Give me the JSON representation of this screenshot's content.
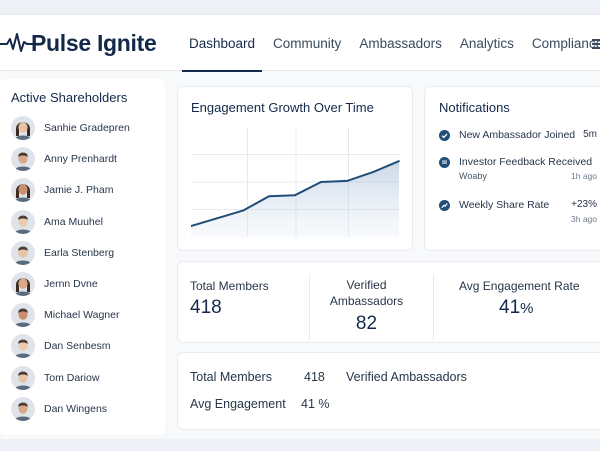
{
  "brand": {
    "name": "Pulse Ignite",
    "accent": "#14294a"
  },
  "nav": {
    "items": [
      {
        "label": "Dashboard",
        "active": true
      },
      {
        "label": "Community",
        "active": false
      },
      {
        "label": "Ambassadors",
        "active": false
      },
      {
        "label": "Analytics",
        "active": false
      },
      {
        "label": "Compliance",
        "active": false
      }
    ],
    "menu_icon": "hamburger-menu-icon"
  },
  "sidebar": {
    "title": "Active Shareholders",
    "shareholders": [
      {
        "name": "Sanhie Gradepren",
        "avatar": "female"
      },
      {
        "name": "Anny Prenhardt",
        "avatar": "male"
      },
      {
        "name": "Jamie J. Pham",
        "avatar": "female"
      },
      {
        "name": "Ama Muuhel",
        "avatar": "male"
      },
      {
        "name": "Earla Stenberg",
        "avatar": "male"
      },
      {
        "name": "Jernn Dvne",
        "avatar": "female"
      },
      {
        "name": "Michael Wagner",
        "avatar": "male"
      },
      {
        "name": "Dan Senbesm",
        "avatar": "male"
      },
      {
        "name": "Tom Dariow",
        "avatar": "male"
      },
      {
        "name": "Dan Wingens",
        "avatar": "male"
      }
    ]
  },
  "chart_data": {
    "type": "area",
    "title": "Engagement Growth Over Time",
    "x": [
      0,
      1,
      2,
      3,
      4,
      5,
      6,
      7,
      8
    ],
    "y": [
      10,
      17,
      24,
      37,
      38,
      50,
      51,
      59,
      69
    ],
    "ylim": [
      0,
      100
    ],
    "xlabel": "",
    "ylabel": "",
    "grid": true,
    "color": "#1f4e79"
  },
  "notifications": {
    "title": "Notifications",
    "items": [
      {
        "icon": "check-circle-icon",
        "text": "New Ambassador Joined",
        "value": "5m",
        "sub": "",
        "time": ""
      },
      {
        "icon": "message-icon",
        "text": "Investor Feedback Received",
        "value": "",
        "sub": "Woaby",
        "time": "1h ago"
      },
      {
        "icon": "trend-up-icon",
        "text": "Weekly Share Rate",
        "value": "+23%",
        "sub": "",
        "time": "3h ago"
      }
    ]
  },
  "stats": {
    "total_members": {
      "label": "Total Members",
      "value": "418"
    },
    "verified": {
      "label": "Verified Ambassadors",
      "label_line1": "Verified",
      "label_line2": "Ambassadors",
      "value": "82"
    },
    "avg_rate": {
      "label": "Avg Engagement Rate",
      "value": "41",
      "unit": "%"
    }
  },
  "summary": {
    "total_members_label": "Total Members",
    "total_members_value": "418",
    "verified_label": "Verified Ambassadors",
    "avg_label": "Avg Engagement",
    "avg_value": "41 %"
  }
}
